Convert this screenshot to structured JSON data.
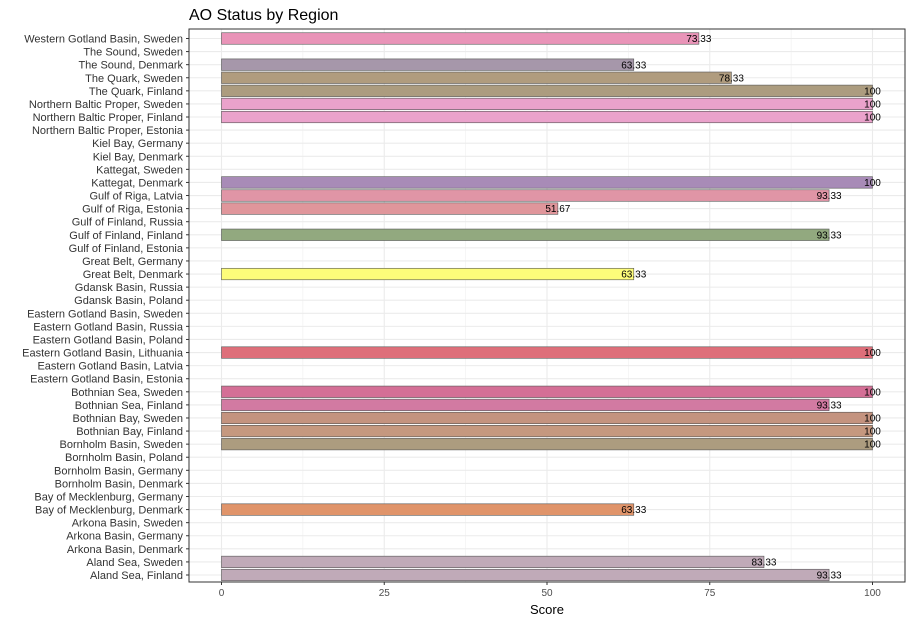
{
  "chart_data": {
    "type": "bar",
    "orientation": "horizontal",
    "title": "AO Status by Region",
    "xlabel": "Score",
    "ylabel": "",
    "xlim": [
      0,
      100
    ],
    "xticks": [
      "0",
      "25",
      "50",
      "75",
      "100"
    ],
    "grid": true,
    "legend": "none",
    "categories": [
      "Western Gotland Basin, Sweden",
      "The Sound, Sweden",
      "The Sound, Denmark",
      "The Quark, Sweden",
      "The Quark, Finland",
      "Northern Baltic Proper, Sweden",
      "Northern Baltic Proper, Finland",
      "Northern Baltic Proper, Estonia",
      "Kiel Bay, Germany",
      "Kiel Bay, Denmark",
      "Kattegat, Sweden",
      "Kattegat, Denmark",
      "Gulf of Riga, Latvia",
      "Gulf of Riga, Estonia",
      "Gulf of Finland, Russia",
      "Gulf of Finland, Finland",
      "Gulf of Finland, Estonia",
      "Great Belt, Germany",
      "Great Belt, Denmark",
      "Gdansk Basin, Russia",
      "Gdansk Basin, Poland",
      "Eastern Gotland Basin, Sweden",
      "Eastern Gotland Basin, Russia",
      "Eastern Gotland Basin, Poland",
      "Eastern Gotland Basin, Lithuania",
      "Eastern Gotland Basin, Latvia",
      "Eastern Gotland Basin, Estonia",
      "Bothnian Sea, Sweden",
      "Bothnian Sea, Finland",
      "Bothnian Bay, Sweden",
      "Bothnian Bay, Finland",
      "Bornholm Basin, Sweden",
      "Bornholm Basin, Poland",
      "Bornholm Basin, Germany",
      "Bornholm Basin, Denmark",
      "Bay of Mecklenburg, Germany",
      "Bay of Mecklenburg, Denmark",
      "Arkona Basin, Sweden",
      "Arkona Basin, Germany",
      "Arkona Basin, Denmark",
      "Aland Sea, Sweden",
      "Aland Sea, Finland"
    ],
    "values": [
      73.33,
      null,
      63.33,
      78.33,
      100,
      100,
      100,
      null,
      null,
      null,
      null,
      100,
      93.33,
      51.67,
      null,
      93.33,
      null,
      null,
      63.33,
      null,
      null,
      null,
      null,
      null,
      100,
      null,
      null,
      100,
      93.33,
      100,
      100,
      100,
      null,
      null,
      null,
      null,
      63.33,
      null,
      null,
      null,
      83.33,
      93.33
    ],
    "labels": [
      "73.33",
      "",
      "63.33",
      "78.33",
      "100",
      "100",
      "100",
      "",
      "",
      "",
      "",
      "100",
      "93.33",
      "51.67",
      "",
      "93.33",
      "",
      "",
      "63.33",
      "",
      "",
      "",
      "",
      "",
      "100",
      "",
      "",
      "100",
      "93.33",
      "100",
      "100",
      "100",
      "",
      "",
      "",
      "",
      "63.33",
      "",
      "",
      "",
      "83.33",
      "93.33"
    ],
    "colors": [
      "#e994b8",
      null,
      "#a697aa",
      "#b09c7e",
      "#ac9c7f",
      "#eaa2cb",
      "#eaa2cb",
      null,
      null,
      null,
      null,
      "#a88bb7",
      "#e095a6",
      "#e0969b",
      null,
      "#92a97f",
      null,
      null,
      "#fdfc7a",
      null,
      null,
      null,
      null,
      null,
      "#de6f7a",
      null,
      null,
      "#d46f96",
      "#d27aa2",
      "#c4937f",
      "#c5987f",
      "#ac9c7f",
      null,
      null,
      null,
      null,
      "#e0946a",
      null,
      null,
      null,
      "#c0aab8",
      "#c0aab8"
    ]
  }
}
